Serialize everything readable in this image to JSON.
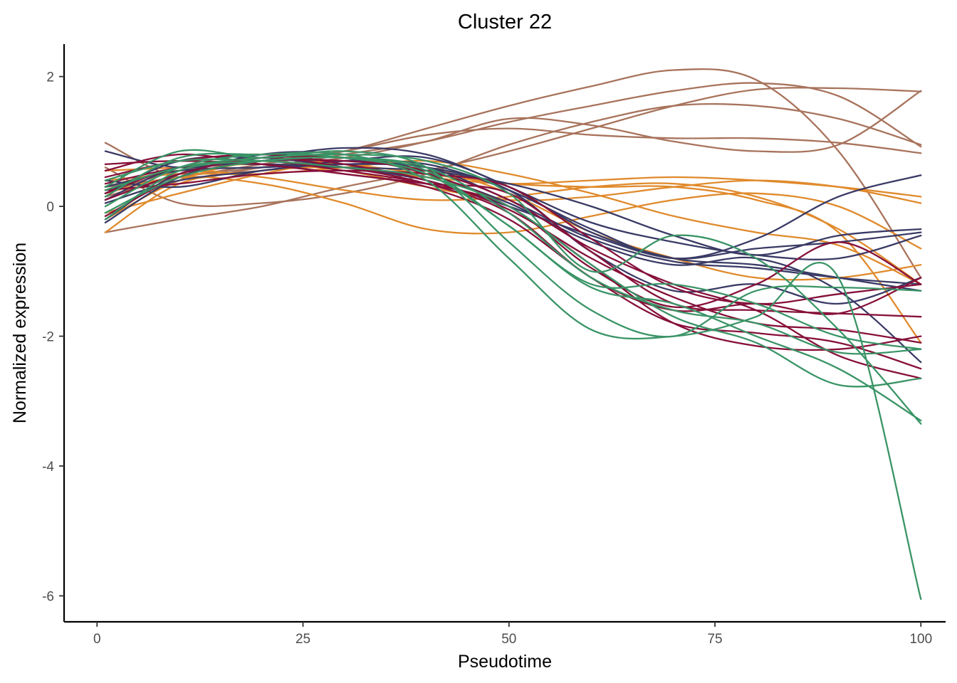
{
  "chart_data": {
    "type": "line",
    "title": "Cluster 22",
    "xlabel": "Pseudotime",
    "ylabel": "Normalized expression",
    "xlim": [
      -4,
      103
    ],
    "ylim": [
      -6.4,
      2.5
    ],
    "xticks": [
      0,
      25,
      50,
      75,
      100
    ],
    "xtick_labels": [
      "0",
      "25",
      "50",
      "75",
      "100"
    ],
    "yticks": [
      2,
      0,
      -2,
      -4,
      -6
    ],
    "ytick_labels": [
      "2",
      "0",
      "-2",
      "-4",
      "-6"
    ],
    "grid": false,
    "legend": "none",
    "x": [
      1,
      10,
      20,
      30,
      40,
      50,
      60,
      70,
      80,
      90,
      100
    ],
    "series": [
      {
        "color": "#A8735C",
        "values": [
          0.98,
          0.45,
          0.6,
          0.75,
          1.0,
          1.35,
          1.25,
          1.0,
          0.85,
          0.95,
          1.78
        ]
      },
      {
        "color": "#A8735C",
        "values": [
          0.3,
          0.45,
          0.65,
          0.85,
          1.2,
          1.55,
          1.85,
          2.1,
          1.95,
          0.85,
          -1.1
        ]
      },
      {
        "color": "#A8735C",
        "values": [
          -0.4,
          -0.2,
          0.0,
          0.3,
          0.55,
          0.85,
          1.2,
          1.55,
          1.8,
          1.82,
          1.77
        ]
      },
      {
        "color": "#A8735C",
        "values": [
          0.6,
          0.05,
          0.05,
          0.2,
          0.5,
          0.95,
          1.3,
          1.55,
          1.55,
          1.35,
          0.95
        ]
      },
      {
        "color": "#A8735C",
        "values": [
          0.2,
          0.55,
          0.7,
          0.85,
          1.1,
          1.2,
          1.1,
          1.05,
          1.05,
          0.98,
          0.82
        ]
      },
      {
        "color": "#A8735C",
        "values": [
          0.15,
          0.45,
          0.6,
          0.8,
          1.0,
          1.3,
          1.55,
          1.78,
          1.9,
          1.7,
          0.92
        ]
      },
      {
        "color": "#E08A2C",
        "values": [
          -0.4,
          0.35,
          0.55,
          0.6,
          0.45,
          0.35,
          0.4,
          0.45,
          0.4,
          0.3,
          0.15
        ]
      },
      {
        "color": "#E08A2C",
        "values": [
          0.55,
          0.6,
          0.65,
          0.55,
          0.3,
          0.1,
          0.15,
          0.3,
          0.4,
          0.3,
          0.05
        ]
      },
      {
        "color": "#E08A2C",
        "values": [
          0.2,
          0.45,
          0.35,
          0.05,
          -0.35,
          -0.4,
          -0.15,
          0.1,
          0.2,
          0.0,
          -0.65
        ]
      },
      {
        "color": "#E08A2C",
        "values": [
          0.4,
          0.5,
          0.5,
          0.6,
          0.7,
          0.5,
          0.2,
          -0.15,
          -0.4,
          -0.6,
          -1.2
        ]
      },
      {
        "color": "#E08A2C",
        "values": [
          -0.2,
          0.4,
          0.7,
          0.65,
          0.5,
          0.35,
          0.3,
          0.3,
          0.1,
          -0.4,
          -2.1
        ]
      },
      {
        "color": "#E08A2C",
        "values": [
          0.3,
          0.55,
          0.45,
          0.25,
          0.1,
          0.15,
          0.3,
          0.35,
          0.15,
          -0.35,
          -1.2
        ]
      },
      {
        "color": "#E08A2C",
        "values": [
          -0.1,
          0.2,
          0.5,
          0.7,
          0.6,
          0.2,
          -0.4,
          -0.8,
          -1.1,
          -1.1,
          -0.9
        ]
      },
      {
        "color": "#3A3A66",
        "values": [
          0.85,
          0.6,
          0.75,
          0.9,
          0.8,
          0.3,
          -0.25,
          -0.55,
          -0.75,
          -0.8,
          -0.45
        ]
      },
      {
        "color": "#3A3A66",
        "values": [
          -0.2,
          0.5,
          0.7,
          0.7,
          0.65,
          0.25,
          -0.35,
          -0.8,
          -0.5,
          0.15,
          0.48
        ]
      },
      {
        "color": "#3A3A66",
        "values": [
          0.1,
          0.6,
          0.65,
          0.6,
          0.55,
          0.35,
          0.0,
          -0.45,
          -0.75,
          -0.45,
          -0.35
        ]
      },
      {
        "color": "#3A3A66",
        "values": [
          0.4,
          0.3,
          0.55,
          0.65,
          0.6,
          0.1,
          -0.5,
          -0.85,
          -0.95,
          -1.1,
          -1.2
        ]
      },
      {
        "color": "#3A3A66",
        "values": [
          -0.25,
          0.45,
          0.8,
          0.8,
          0.5,
          0.05,
          -0.55,
          -0.9,
          -0.8,
          -1.3,
          -2.4
        ]
      },
      {
        "color": "#3A3A66",
        "values": [
          0.2,
          0.7,
          0.75,
          0.6,
          0.4,
          0.0,
          -0.45,
          -0.8,
          -0.65,
          -0.55,
          -0.4
        ]
      },
      {
        "color": "#3A3A66",
        "values": [
          0.3,
          0.55,
          0.6,
          0.65,
          0.6,
          0.25,
          -0.7,
          -1.3,
          -1.2,
          -1.5,
          -1.1
        ]
      },
      {
        "color": "#3A3A66",
        "values": [
          0.05,
          0.4,
          0.55,
          0.7,
          0.75,
          0.3,
          -0.4,
          -0.8,
          -0.9,
          -1.1,
          -1.3
        ]
      },
      {
        "color": "#86103A",
        "values": [
          0.65,
          0.7,
          0.65,
          0.5,
          0.35,
          0.2,
          -0.7,
          -1.5,
          -1.6,
          -1.65,
          -1.7
        ]
      },
      {
        "color": "#86103A",
        "values": [
          0.2,
          0.6,
          0.7,
          0.55,
          0.35,
          0.0,
          -0.95,
          -1.55,
          -1.2,
          -0.55,
          -1.2
        ]
      },
      {
        "color": "#86103A",
        "values": [
          -0.15,
          0.45,
          0.7,
          0.7,
          0.55,
          0.1,
          -0.65,
          -1.2,
          -1.6,
          -2.3,
          -2.65
        ]
      },
      {
        "color": "#86103A",
        "values": [
          0.35,
          0.6,
          0.75,
          0.75,
          0.5,
          0.0,
          -0.9,
          -1.8,
          -2.15,
          -2.2,
          -2.0
        ]
      },
      {
        "color": "#86103A",
        "values": [
          0.1,
          0.5,
          0.75,
          0.6,
          0.35,
          -0.1,
          -1.1,
          -1.6,
          -1.5,
          -1.65,
          -1.1
        ]
      },
      {
        "color": "#86103A",
        "values": [
          0.55,
          0.8,
          0.65,
          0.5,
          0.3,
          -0.2,
          -1.1,
          -1.8,
          -1.95,
          -2.1,
          -2.5
        ]
      },
      {
        "color": "#86103A",
        "values": [
          0.25,
          0.35,
          0.5,
          0.55,
          0.5,
          0.3,
          -0.5,
          -1.25,
          -1.5,
          -1.35,
          -1.2
        ]
      },
      {
        "color": "#86103A",
        "values": [
          0.45,
          0.7,
          0.8,
          0.65,
          0.4,
          -0.05,
          -0.8,
          -1.4,
          -1.8,
          -1.9,
          -2.1
        ]
      },
      {
        "color": "#3A9466",
        "values": [
          0.3,
          0.85,
          0.75,
          0.85,
          0.6,
          -0.55,
          -1.6,
          -2.0,
          -1.3,
          -1.25,
          -1.3
        ]
      },
      {
        "color": "#3A9466",
        "values": [
          0.15,
          0.75,
          0.8,
          0.8,
          0.4,
          -0.8,
          -1.9,
          -2.0,
          -1.7,
          -1.1,
          -6.05
        ]
      },
      {
        "color": "#3A9466",
        "values": [
          -0.2,
          0.55,
          0.7,
          0.75,
          0.55,
          -0.3,
          -1.2,
          -1.2,
          -1.5,
          -2.0,
          -2.2
        ]
      },
      {
        "color": "#3A9466",
        "values": [
          0.25,
          0.6,
          0.75,
          0.8,
          0.7,
          0.2,
          -1.0,
          -0.45,
          -0.8,
          -1.9,
          -3.35
        ]
      },
      {
        "color": "#3A9466",
        "values": [
          0.0,
          0.6,
          0.8,
          0.75,
          0.5,
          -0.3,
          -1.25,
          -1.5,
          -2.0,
          -2.5,
          -3.3
        ]
      },
      {
        "color": "#3A9466",
        "values": [
          0.4,
          0.7,
          0.7,
          0.6,
          0.45,
          0.0,
          -0.9,
          -1.7,
          -2.1,
          -2.75,
          -2.65
        ]
      },
      {
        "color": "#3A9466",
        "values": [
          -0.1,
          0.45,
          0.7,
          0.75,
          0.6,
          -0.1,
          -1.1,
          -1.6,
          -1.8,
          -2.25,
          -2.2
        ]
      }
    ]
  }
}
